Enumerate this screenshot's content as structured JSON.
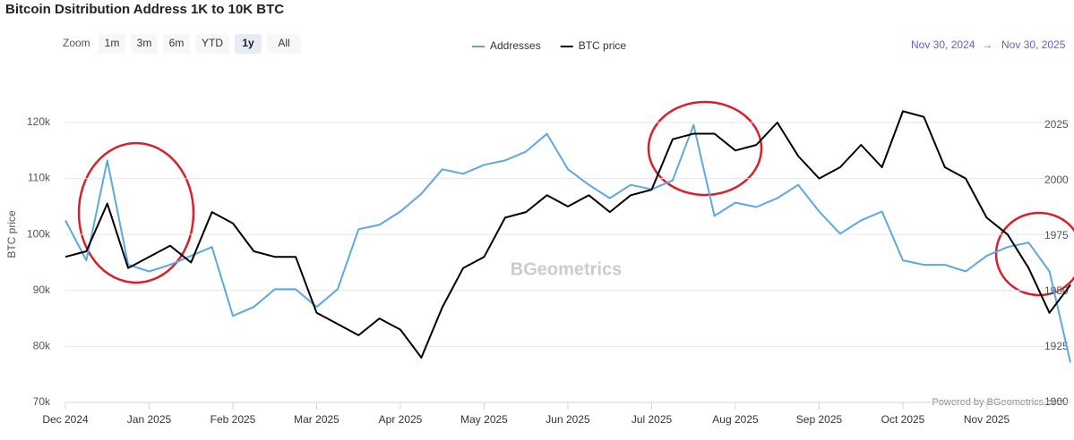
{
  "chart_data": {
    "type": "line",
    "title": "Bitcoin Dsitribution Address 1K to 10K BTC",
    "range_selector": {
      "label": "Zoom",
      "buttons": [
        "1m",
        "3m",
        "6m",
        "YTD",
        "1y",
        "All"
      ],
      "selected": 4
    },
    "date_range": {
      "from": "Nov 30, 2024",
      "arrow": "→",
      "to": "Nov 30, 2025"
    },
    "watermark": "BGeometrics",
    "credit": "Powered by BGeometrics.com",
    "y_label": "BTC price",
    "categories": [
      "Dec 2024",
      null,
      null,
      null,
      "Jan 2025",
      null,
      null,
      null,
      "Feb 2025",
      null,
      null,
      null,
      "Mar 2025",
      null,
      null,
      null,
      "Apr 2025",
      null,
      null,
      null,
      "May 2025",
      null,
      null,
      null,
      "Jun 2025",
      null,
      null,
      null,
      "Jul 2025",
      null,
      null,
      null,
      "Aug 2025",
      null,
      null,
      null,
      "Sep 2025",
      null,
      null,
      null,
      "Oct 2025",
      null,
      null,
      null,
      "Nov 2025",
      null,
      null,
      null,
      null
    ],
    "series": [
      {
        "name": "Addresses",
        "color": "#5aa9e0",
        "axis": "y2",
        "values": [
          1982,
          1964,
          2009,
          1962,
          1959,
          1962,
          1966,
          1970,
          1939,
          1943,
          1951,
          1951,
          1943,
          1951,
          1978,
          1980,
          1986,
          1994,
          2005,
          2003,
          2007,
          2009,
          2013,
          2021,
          2005,
          1998,
          1992,
          1998,
          1996,
          2000,
          2025,
          1984,
          1990,
          1988,
          1992,
          1998,
          1986,
          1976,
          1982,
          1986,
          1964,
          1962,
          1962,
          1959,
          1966,
          1970,
          1972,
          1959,
          1918
        ]
      },
      {
        "name": "BTC price",
        "color": "#000000",
        "values": [
          96000,
          97000,
          105500,
          94000,
          96000,
          98000,
          95000,
          104000,
          102000,
          97000,
          96000,
          96000,
          86000,
          84000,
          82000,
          85000,
          83000,
          78000,
          87000,
          94000,
          96000,
          103000,
          104000,
          107000,
          105000,
          107000,
          104000,
          107000,
          108000,
          117000,
          118000,
          118000,
          115000,
          116000,
          120000,
          114000,
          110000,
          112000,
          116000,
          112000,
          122000,
          121000,
          112000,
          110000,
          103000,
          100000,
          94000,
          86000,
          91000
        ]
      }
    ],
    "ylim": [
      70000,
      127500
    ],
    "yticks": [
      {
        "value": 70000,
        "label": "70k"
      },
      {
        "value": 80000,
        "label": "80k"
      },
      {
        "value": 90000,
        "label": "90k"
      },
      {
        "value": 100000,
        "label": "100k"
      },
      {
        "value": 110000,
        "label": "110k"
      },
      {
        "value": 120000,
        "label": "120k"
      }
    ],
    "y2lim": [
      1900,
      2045
    ],
    "y2ticks": [
      1900,
      1925,
      1950,
      1975,
      2000,
      2025
    ],
    "grid": true
  }
}
